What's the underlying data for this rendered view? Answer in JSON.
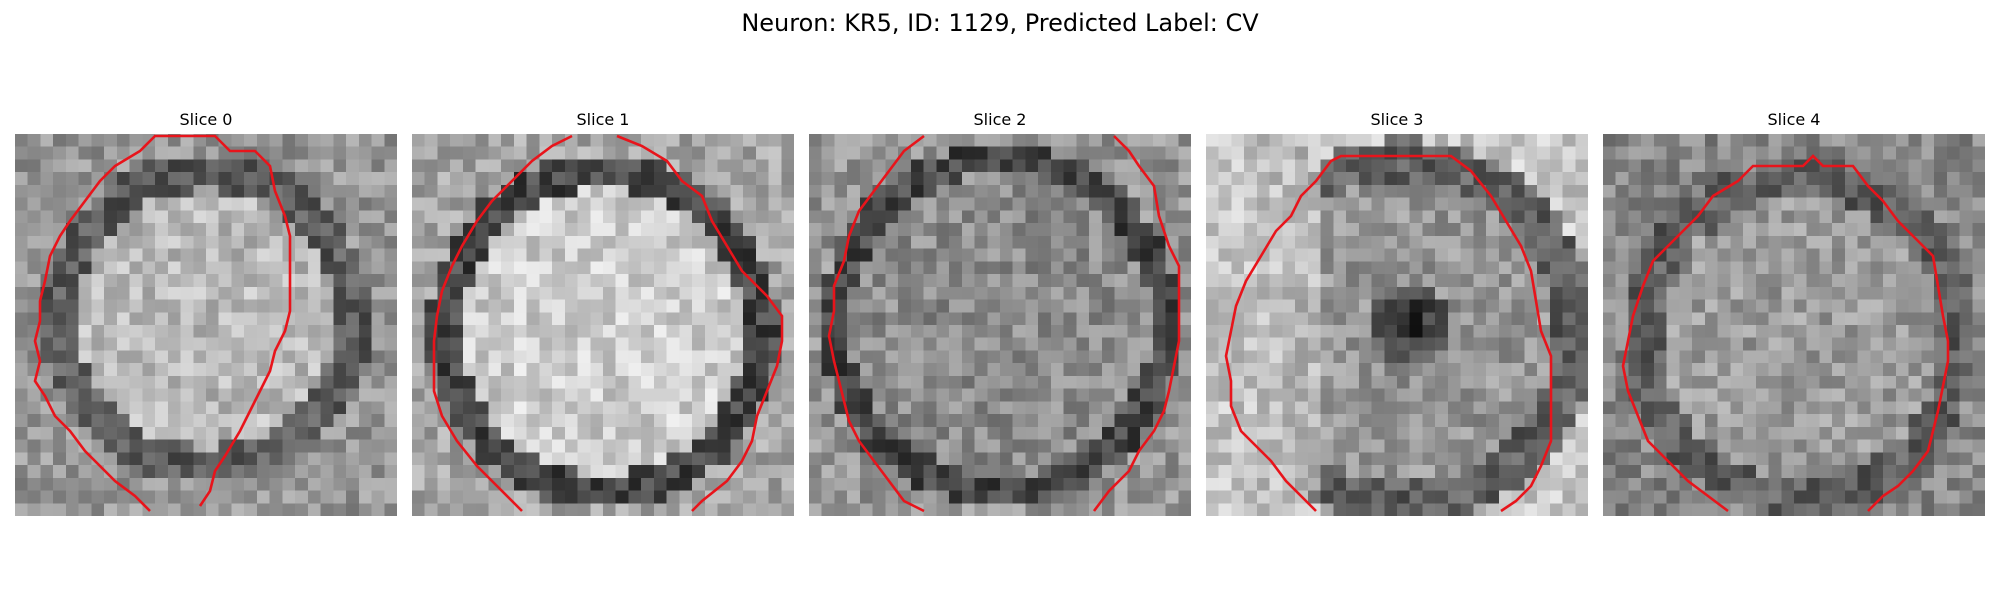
{
  "figure": {
    "title": "Neuron: KR5, ID: 1129, Predicted Label: CV"
  },
  "colors": {
    "contour": "#e8141b",
    "background": "#ffffff"
  },
  "slices": [
    {
      "title": "Slice 0"
    },
    {
      "title": "Slice 1"
    },
    {
      "title": "Slice 2"
    },
    {
      "title": "Slice 3"
    },
    {
      "title": "Slice 4"
    }
  ]
}
